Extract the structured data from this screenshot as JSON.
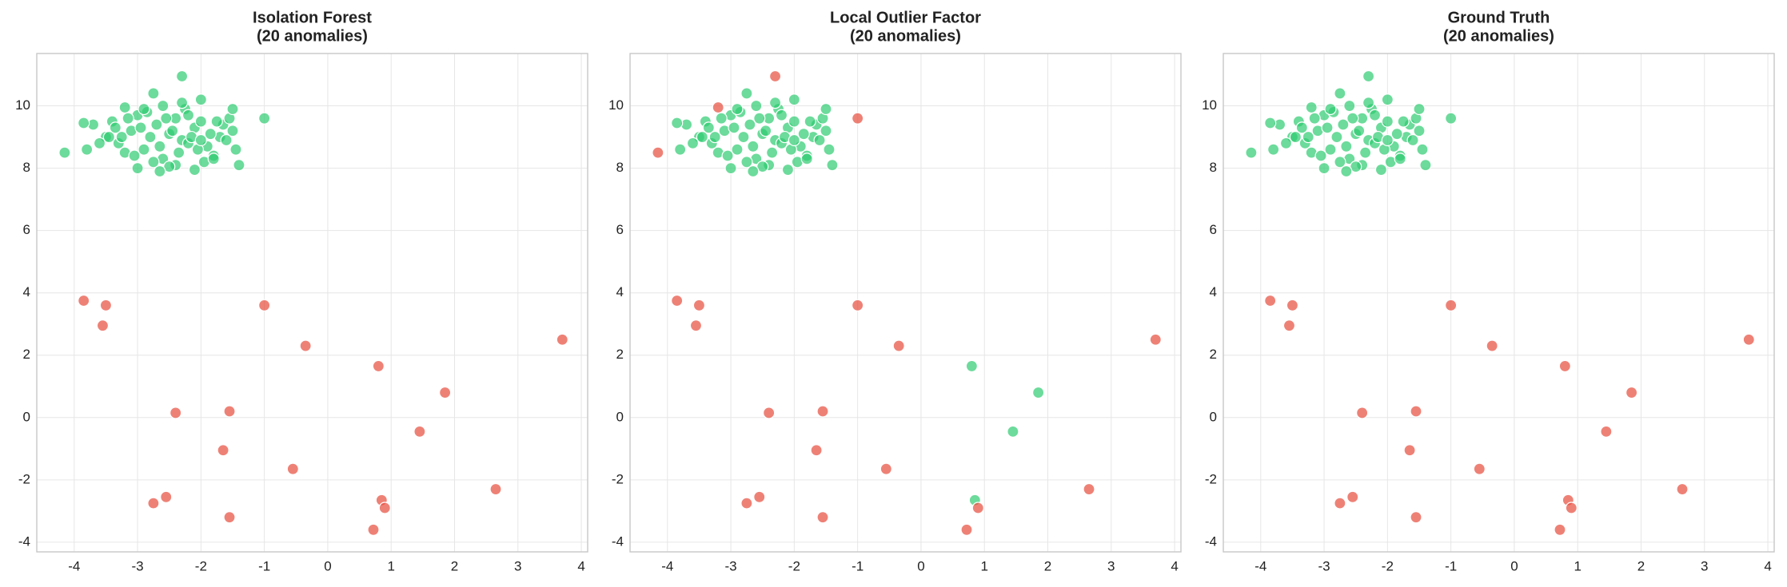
{
  "chart_data": [
    {
      "type": "scatter",
      "title": "Isolation Forest",
      "subtitle": "(20 anomalies)",
      "xlim": [
        -4.59,
        4.1
      ],
      "ylim": [
        -4.31,
        11.68
      ],
      "xticks": [
        -4,
        -3,
        -2,
        -1,
        0,
        1,
        2,
        3,
        4
      ],
      "yticks": [
        -4,
        -2,
        0,
        2,
        4,
        6,
        8,
        10
      ],
      "grid": true,
      "series": [
        {
          "color": "#2ecc71",
          "x": [
            -3.5,
            -3.3,
            -3.1,
            -2.9,
            -2.7,
            -2.5,
            -2.3,
            -2.1,
            -1.9,
            -1.7,
            -1.5,
            -3.4,
            -3.2,
            -3.0,
            -2.8,
            -2.6,
            -2.4,
            -2.2,
            -2.0,
            -1.8,
            -1.6,
            -3.6,
            -3.35,
            -3.05,
            -2.85,
            -2.65,
            -2.45,
            -2.25,
            -2.05,
            -1.85,
            -1.65,
            -3.25,
            -2.95,
            -2.75,
            -2.55,
            -2.35,
            -2.15,
            -1.95,
            -1.75,
            -3.15,
            -2.9,
            -2.6,
            -2.4,
            -2.2,
            -2.0,
            -1.8,
            -3.8,
            -3.7,
            -2.75,
            -1.45,
            -1.4,
            -2.5,
            -2.1,
            -3.0,
            -2.3,
            -1.55,
            -1.5,
            -2.65,
            -3.45,
            -2.0,
            -4.15,
            -3.85,
            -3.2,
            -2.3,
            -1.0
          ],
          "values": [
            9.0,
            8.8,
            9.2,
            8.6,
            9.4,
            9.1,
            8.9,
            9.3,
            8.7,
            9.0,
            9.2,
            9.5,
            8.5,
            9.7,
            9.0,
            8.3,
            9.6,
            8.8,
            9.5,
            8.4,
            8.9,
            8.8,
            9.3,
            8.4,
            9.8,
            8.7,
            9.2,
            9.9,
            8.6,
            9.1,
            9.4,
            9.0,
            9.3,
            8.2,
            9.6,
            8.5,
            9.0,
            8.2,
            9.5,
            9.6,
            9.9,
            10.0,
            8.1,
            9.7,
            8.9,
            8.3,
            8.6,
            9.4,
            10.4,
            8.6,
            8.1,
            8.05,
            7.95,
            8.0,
            10.1,
            9.6,
            9.9,
            7.9,
            9.0,
            10.2,
            8.5,
            9.45,
            9.95,
            10.95,
            9.6
          ]
        },
        {
          "color": "#e74c3c",
          "x": [
            -3.85,
            -3.5,
            -3.55,
            -1.0,
            -0.35,
            3.7,
            0.8,
            1.85,
            -2.4,
            -1.55,
            1.45,
            -1.65,
            -0.55,
            -2.75,
            -2.55,
            -1.55,
            0.85,
            0.9,
            2.65,
            0.72
          ],
          "values": [
            3.75,
            3.6,
            2.95,
            3.6,
            2.3,
            2.5,
            1.65,
            0.8,
            0.15,
            0.2,
            -0.45,
            -1.05,
            -1.65,
            -2.75,
            -2.55,
            -3.2,
            -2.65,
            -2.9,
            -2.3,
            -3.6
          ]
        }
      ]
    },
    {
      "type": "scatter",
      "title": "Local Outlier Factor",
      "subtitle": "(20 anomalies)",
      "xlim": [
        -4.59,
        4.1
      ],
      "ylim": [
        -4.31,
        11.68
      ],
      "xticks": [
        -4,
        -3,
        -2,
        -1,
        0,
        1,
        2,
        3,
        4
      ],
      "yticks": [
        -4,
        -2,
        0,
        2,
        4,
        6,
        8,
        10
      ],
      "grid": true,
      "series": [
        {
          "color": "#2ecc71",
          "x": [
            -3.5,
            -3.3,
            -3.1,
            -2.9,
            -2.7,
            -2.5,
            -2.3,
            -2.1,
            -1.9,
            -1.7,
            -1.5,
            -3.4,
            -3.2,
            -3.0,
            -2.8,
            -2.6,
            -2.4,
            -2.2,
            -2.0,
            -1.8,
            -1.6,
            -3.6,
            -3.35,
            -3.05,
            -2.85,
            -2.65,
            -2.45,
            -2.25,
            -2.05,
            -1.85,
            -1.65,
            -3.25,
            -2.95,
            -2.75,
            -2.55,
            -2.35,
            -2.15,
            -1.95,
            -1.75,
            -3.15,
            -2.9,
            -2.6,
            -2.4,
            -2.2,
            -2.0,
            -1.8,
            -3.8,
            -3.7,
            -2.75,
            -1.45,
            -1.4,
            -2.5,
            -2.1,
            -3.0,
            -2.3,
            -1.55,
            -1.5,
            -2.65,
            -3.45,
            -2.0,
            -3.85,
            0.8,
            1.85,
            1.45,
            0.85
          ],
          "values": [
            9.0,
            8.8,
            9.2,
            8.6,
            9.4,
            9.1,
            8.9,
            9.3,
            8.7,
            9.0,
            9.2,
            9.5,
            8.5,
            9.7,
            9.0,
            8.3,
            9.6,
            8.8,
            9.5,
            8.4,
            8.9,
            8.8,
            9.3,
            8.4,
            9.8,
            8.7,
            9.2,
            9.9,
            8.6,
            9.1,
            9.4,
            9.0,
            9.3,
            8.2,
            9.6,
            8.5,
            9.0,
            8.2,
            9.5,
            9.6,
            9.9,
            10.0,
            8.1,
            9.7,
            8.9,
            8.3,
            8.6,
            9.4,
            10.4,
            8.6,
            8.1,
            8.05,
            7.95,
            8.0,
            10.1,
            9.6,
            9.9,
            7.9,
            9.0,
            10.2,
            9.45,
            1.65,
            0.8,
            -0.45,
            -2.65
          ]
        },
        {
          "color": "#e74c3c",
          "x": [
            -3.85,
            -3.5,
            -3.55,
            -1.0,
            -0.35,
            3.7,
            -2.4,
            -1.55,
            -1.65,
            -0.55,
            -2.75,
            -2.55,
            -1.55,
            0.9,
            2.65,
            0.72,
            -4.15,
            -3.2,
            -2.3,
            -1.0
          ],
          "values": [
            3.75,
            3.6,
            2.95,
            3.6,
            2.3,
            2.5,
            0.15,
            0.2,
            -1.05,
            -1.65,
            -2.75,
            -2.55,
            -3.2,
            -2.9,
            -2.3,
            -3.6,
            8.5,
            9.95,
            10.95,
            9.6
          ]
        }
      ]
    },
    {
      "type": "scatter",
      "title": "Ground Truth",
      "subtitle": "(20 anomalies)",
      "xlim": [
        -4.59,
        4.1
      ],
      "ylim": [
        -4.31,
        11.68
      ],
      "xticks": [
        -4,
        -3,
        -2,
        -1,
        0,
        1,
        2,
        3,
        4
      ],
      "yticks": [
        -4,
        -2,
        0,
        2,
        4,
        6,
        8,
        10
      ],
      "grid": true,
      "series": [
        {
          "color": "#2ecc71",
          "x": [
            -3.5,
            -3.3,
            -3.1,
            -2.9,
            -2.7,
            -2.5,
            -2.3,
            -2.1,
            -1.9,
            -1.7,
            -1.5,
            -3.4,
            -3.2,
            -3.0,
            -2.8,
            -2.6,
            -2.4,
            -2.2,
            -2.0,
            -1.8,
            -1.6,
            -3.6,
            -3.35,
            -3.05,
            -2.85,
            -2.65,
            -2.45,
            -2.25,
            -2.05,
            -1.85,
            -1.65,
            -3.25,
            -2.95,
            -2.75,
            -2.55,
            -2.35,
            -2.15,
            -1.95,
            -1.75,
            -3.15,
            -2.9,
            -2.6,
            -2.4,
            -2.2,
            -2.0,
            -1.8,
            -3.8,
            -3.7,
            -2.75,
            -1.45,
            -1.4,
            -2.5,
            -2.1,
            -3.0,
            -2.3,
            -1.55,
            -1.5,
            -2.65,
            -3.45,
            -2.0,
            -4.15,
            -3.85,
            -3.2,
            -2.3,
            -1.0
          ],
          "values": [
            9.0,
            8.8,
            9.2,
            8.6,
            9.4,
            9.1,
            8.9,
            9.3,
            8.7,
            9.0,
            9.2,
            9.5,
            8.5,
            9.7,
            9.0,
            8.3,
            9.6,
            8.8,
            9.5,
            8.4,
            8.9,
            8.8,
            9.3,
            8.4,
            9.8,
            8.7,
            9.2,
            9.9,
            8.6,
            9.1,
            9.4,
            9.0,
            9.3,
            8.2,
            9.6,
            8.5,
            9.0,
            8.2,
            9.5,
            9.6,
            9.9,
            10.0,
            8.1,
            9.7,
            8.9,
            8.3,
            8.6,
            9.4,
            10.4,
            8.6,
            8.1,
            8.05,
            7.95,
            8.0,
            10.1,
            9.6,
            9.9,
            7.9,
            9.0,
            10.2,
            8.5,
            9.45,
            9.95,
            10.95,
            9.6
          ]
        },
        {
          "color": "#e74c3c",
          "x": [
            -3.85,
            -3.5,
            -3.55,
            -1.0,
            -0.35,
            3.7,
            0.8,
            1.85,
            -2.4,
            -1.55,
            1.45,
            -1.65,
            -0.55,
            -2.75,
            -2.55,
            -1.55,
            0.85,
            0.9,
            2.65,
            0.72
          ],
          "values": [
            3.75,
            3.6,
            2.95,
            3.6,
            2.3,
            2.5,
            1.65,
            0.8,
            0.15,
            0.2,
            -0.45,
            -1.05,
            -1.65,
            -2.75,
            -2.55,
            -3.2,
            -2.65,
            -2.9,
            -2.3,
            -3.6
          ]
        }
      ]
    }
  ]
}
